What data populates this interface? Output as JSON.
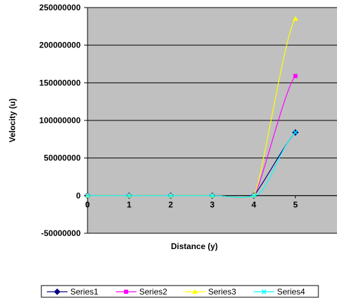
{
  "chart_data": {
    "type": "line",
    "title": "",
    "xlabel": "Distance (y)",
    "ylabel": "Velocity (u)",
    "x": [
      0,
      1,
      2,
      3,
      4,
      5
    ],
    "x_ticks": [
      "0",
      "1",
      "2",
      "3",
      "4",
      "5"
    ],
    "xlim": [
      0,
      6
    ],
    "ylim": [
      -50000000,
      250000000
    ],
    "y_ticks": [
      250000000,
      200000000,
      150000000,
      100000000,
      50000000,
      0,
      -50000000
    ],
    "y_tick_labels": [
      "250000000",
      "200000000",
      "150000000",
      "100000000",
      "50000000",
      "0",
      "-50000000"
    ],
    "grid": "horizontal",
    "plot_background": "#c0c0c0",
    "legend_position": "bottom",
    "series": [
      {
        "name": "Series1",
        "color": "#000080",
        "marker": "diamond",
        "values": [
          0,
          0,
          0,
          0,
          0,
          84000000
        ]
      },
      {
        "name": "Series2",
        "color": "#ff00ff",
        "marker": "square",
        "values": [
          0,
          0,
          0,
          0,
          0,
          159000000
        ]
      },
      {
        "name": "Series3",
        "color": "#ffff00",
        "marker": "triangle",
        "values": [
          0,
          0,
          0,
          0,
          0,
          235000000
        ]
      },
      {
        "name": "Series4",
        "color": "#00ffff",
        "marker": "x",
        "values": [
          0,
          0,
          0,
          0,
          0,
          84000000
        ]
      }
    ]
  }
}
